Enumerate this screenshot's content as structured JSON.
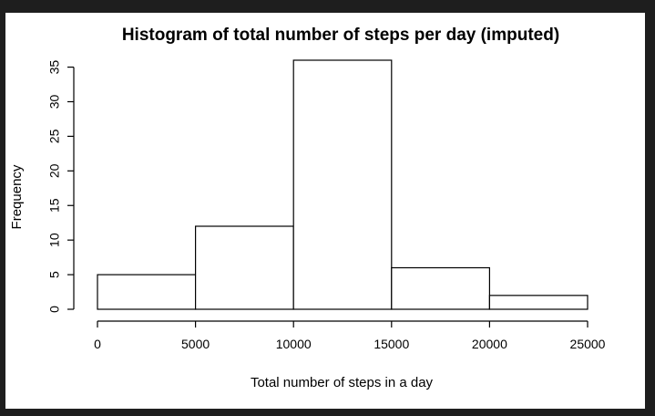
{
  "chart_data": {
    "type": "histogram",
    "title": "Histogram of total number of steps per day (imputed)",
    "xlabel": "Total number of steps in a day",
    "ylabel": "Frequency",
    "bins": [
      {
        "from": 0,
        "to": 5000,
        "count": 5
      },
      {
        "from": 5000,
        "to": 10000,
        "count": 12
      },
      {
        "from": 10000,
        "to": 15000,
        "count": 36
      },
      {
        "from": 15000,
        "to": 20000,
        "count": 6
      },
      {
        "from": 20000,
        "to": 25000,
        "count": 2
      }
    ],
    "xlim": [
      0,
      25000
    ],
    "ylim": [
      0,
      36
    ],
    "x_ticks": [
      0,
      5000,
      10000,
      15000,
      20000,
      25000
    ],
    "y_ticks": [
      0,
      5,
      10,
      15,
      20,
      25,
      30,
      35
    ],
    "grid": false,
    "colors": {
      "bar_fill": "#ffffff",
      "bar_stroke": "#000000",
      "background": "#ffffff",
      "frame": "#1e1e1e"
    }
  }
}
